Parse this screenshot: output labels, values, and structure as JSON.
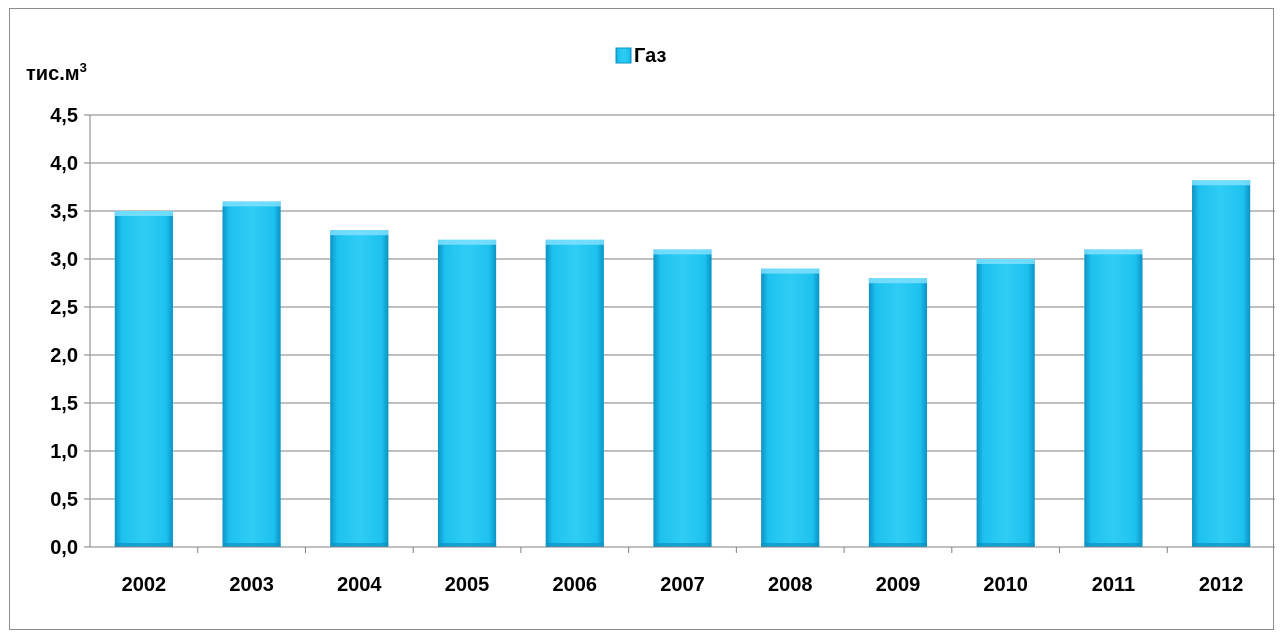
{
  "chart_data": {
    "type": "bar",
    "unit_label": "тис.м",
    "unit_superscript": "3",
    "categories": [
      "2002",
      "2003",
      "2004",
      "2005",
      "2006",
      "2007",
      "2008",
      "2009",
      "2010",
      "2011",
      "2012"
    ],
    "series": [
      {
        "name": "Газ",
        "values": [
          3.5,
          3.6,
          3.3,
          3.2,
          3.2,
          3.1,
          2.9,
          2.8,
          3.0,
          3.1,
          3.82
        ]
      }
    ],
    "ylim": [
      0,
      4.5
    ],
    "ytick_step": 0.5,
    "ytick_labels": [
      "0,0",
      "0,5",
      "1,0",
      "1,5",
      "2,0",
      "2,5",
      "3,0",
      "3,5",
      "4,0",
      "4,5"
    ],
    "grid": true,
    "legend_position": "top-center",
    "colors": {
      "bar": "#1ec1ee",
      "bar_dark": "#0a93c4",
      "bar_light": "#7fe0ff",
      "grid": "#808080",
      "axis": "#808080"
    }
  }
}
